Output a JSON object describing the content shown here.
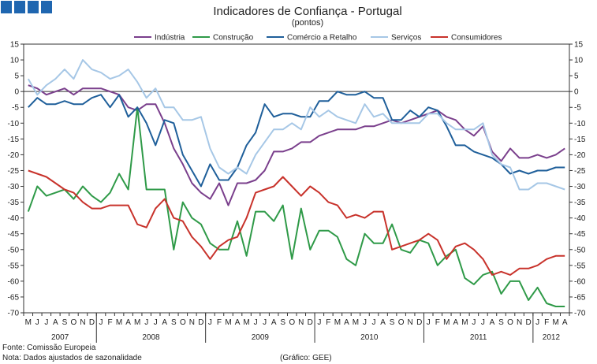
{
  "chart_data": {
    "type": "line",
    "title": "Indicadores de Confiança - Portugal",
    "subtitle": "(pontos)",
    "ylim": [
      -70,
      15
    ],
    "yticks": [
      15,
      10,
      5,
      0,
      -5,
      -10,
      -15,
      -20,
      -25,
      -30,
      -35,
      -40,
      -45,
      -50,
      -55,
      -60,
      -65,
      -70
    ],
    "grid": false,
    "legend_position": "top",
    "months": [
      "M",
      "J",
      "J",
      "A",
      "S",
      "O",
      "N",
      "D",
      "J",
      "F",
      "M",
      "A",
      "M",
      "J",
      "J",
      "A",
      "S",
      "O",
      "N",
      "D",
      "J",
      "F",
      "M",
      "A",
      "M",
      "J",
      "J",
      "A",
      "S",
      "O",
      "N",
      "D",
      "J",
      "F",
      "M",
      "A",
      "M",
      "J",
      "J",
      "A",
      "S",
      "O",
      "N",
      "D",
      "J",
      "F",
      "M",
      "A",
      "M",
      "J",
      "J",
      "A",
      "S",
      "O",
      "N",
      "D",
      "J",
      "F",
      "M",
      "A"
    ],
    "years": [
      {
        "label": "2007",
        "start": 0,
        "end": 8
      },
      {
        "label": "2008",
        "start": 8,
        "end": 20
      },
      {
        "label": "2009",
        "start": 20,
        "end": 32
      },
      {
        "label": "2010",
        "start": 32,
        "end": 44
      },
      {
        "label": "2011",
        "start": 44,
        "end": 56
      },
      {
        "label": "2012",
        "start": 56,
        "end": 60
      }
    ],
    "series": [
      {
        "name": "Indústria",
        "color": "#7a3f8c",
        "values": [
          2,
          1,
          -1,
          0,
          1,
          -1,
          1,
          1,
          1,
          0,
          -1,
          -5,
          -6,
          -4,
          -4,
          -10,
          -18,
          -23,
          -29,
          -32,
          -34,
          -29,
          -36,
          -29,
          -29,
          -28,
          -25,
          -19,
          -19,
          -18,
          -16,
          -16,
          -14,
          -13,
          -12,
          -12,
          -12,
          -11,
          -11,
          -10,
          -9,
          -10,
          -9,
          -8,
          -7,
          -6,
          -8,
          -9,
          -12,
          -14,
          -11,
          -19,
          -22,
          -18,
          -21,
          -21,
          -20,
          -21,
          -20,
          -18
        ]
      },
      {
        "name": "Construção",
        "color": "#2f9a48",
        "values": [
          -38,
          -30,
          -33,
          -32,
          -31,
          -34,
          -30,
          -33,
          -35,
          -32,
          -26,
          -31,
          -5,
          -31,
          -31,
          -31,
          -50,
          -35,
          -40,
          -42,
          -48,
          -50,
          -50,
          -41,
          -52,
          -38,
          -38,
          -41,
          -36,
          -53,
          -37,
          -50,
          -44,
          -44,
          -46,
          -53,
          -55,
          -45,
          -48,
          -48,
          -42,
          -50,
          -51,
          -47,
          -48,
          -55,
          -52,
          -50,
          -59,
          -61,
          -58,
          -57,
          -64,
          -60,
          -60,
          -66,
          -62,
          -67,
          -68,
          -68
        ]
      },
      {
        "name": "Comércio a Retalho",
        "color": "#1f5f9a",
        "values": [
          -5,
          -2,
          -4,
          -4,
          -3,
          -4,
          -4,
          -2,
          -1,
          -5,
          -1,
          -8,
          -5,
          -10,
          -17,
          -9,
          -10,
          -20,
          -25,
          -30,
          -23,
          -28,
          -28,
          -24,
          -17,
          -13,
          -4,
          -8,
          -7,
          -7,
          -8,
          -8,
          -3,
          -3,
          0,
          -1,
          -1,
          0,
          -2,
          -2,
          -9,
          -9,
          -6,
          -8,
          -5,
          -6,
          -11,
          -17,
          -17,
          -19,
          -20,
          -21,
          -23,
          -26,
          -25,
          -26,
          -25,
          -25,
          -24,
          -24
        ]
      },
      {
        "name": "Serviços",
        "color": "#a6c7e6",
        "values": [
          4,
          -1,
          2,
          4,
          7,
          4,
          10,
          7,
          6,
          4,
          5,
          7,
          3,
          -2,
          1,
          -5,
          -5,
          -9,
          -9,
          -8,
          -18,
          -24,
          -26,
          -24,
          -26,
          -20,
          -16,
          -12,
          -12,
          -10,
          -12,
          -5,
          -8,
          -6,
          -8,
          -9,
          -10,
          -4,
          -8,
          -7,
          -10,
          -10,
          -10,
          -10,
          -7,
          -7,
          -10,
          -12,
          -12,
          -12,
          -10,
          -20,
          -23,
          -24,
          -31,
          -31,
          -29,
          -29,
          -30,
          -31
        ]
      },
      {
        "name": "Consumidores",
        "color": "#c8322b",
        "values": [
          -25,
          -26,
          -27,
          -29,
          -31,
          -32,
          -35,
          -37,
          -37,
          -36,
          -36,
          -36,
          -42,
          -43,
          -37,
          -34,
          -40,
          -41,
          -46,
          -49,
          -53,
          -49,
          -47,
          -46,
          -40,
          -32,
          -31,
          -30,
          -27,
          -30,
          -33,
          -30,
          -32,
          -35,
          -36,
          -40,
          -39,
          -40,
          -38,
          -38,
          -50,
          -49,
          -48,
          -47,
          -45,
          -47,
          -53,
          -49,
          -48,
          -50,
          -53,
          -58,
          -57,
          -58,
          -56,
          -56,
          -55,
          -53,
          -52,
          -52
        ]
      }
    ]
  },
  "footer": {
    "source": "Fonte: Comissão Europeia",
    "note": "Nota: Dados ajustados de sazonalidade",
    "credit": "(Gráfico: GEE)"
  }
}
